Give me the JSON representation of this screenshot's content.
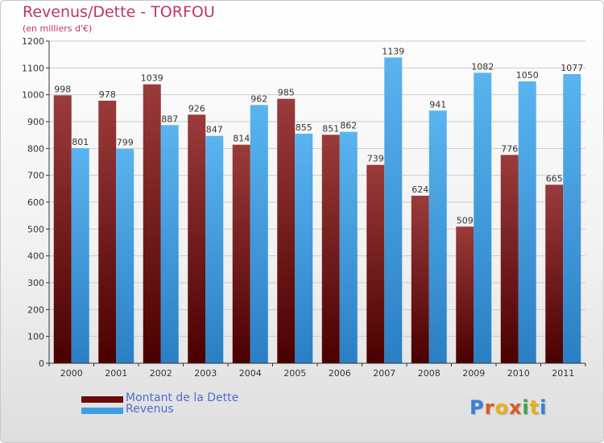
{
  "header": {
    "title": "Revenus/Dette - TORFOU",
    "subtitle": "(en milliers d'€)"
  },
  "legend": {
    "items": [
      {
        "label": "Montant de la Dette",
        "color": "#6b0a0a"
      },
      {
        "label": "Revenus",
        "color": "#3d9fe6"
      }
    ]
  },
  "logo": {
    "text": "Proxiti"
  },
  "colors": {
    "debt_top": "#9b3b3b",
    "debt_bottom": "#4a0000",
    "revenue_top": "#5ab4f0",
    "revenue_bottom": "#2a7fc4",
    "axis": "#333333",
    "grid": "#cccccc",
    "label": "#333333"
  },
  "chart_data": {
    "type": "bar",
    "categories": [
      "2000",
      "2001",
      "2002",
      "2003",
      "2004",
      "2005",
      "2006",
      "2007",
      "2008",
      "2009",
      "2010",
      "2011"
    ],
    "series": [
      {
        "name": "Montant de la Dette",
        "values": [
          998,
          978,
          1039,
          926,
          814,
          985,
          851,
          739,
          624,
          509,
          776,
          665
        ]
      },
      {
        "name": "Revenus",
        "values": [
          801,
          799,
          887,
          847,
          962,
          855,
          862,
          1139,
          941,
          1082,
          1050,
          1077
        ]
      }
    ],
    "title": "Revenus/Dette - TORFOU",
    "ylabel": "(en milliers d'€)",
    "ylim": [
      0,
      1200
    ],
    "yticks": [
      0,
      100,
      200,
      300,
      400,
      500,
      600,
      700,
      800,
      900,
      1000,
      1100,
      1200
    ],
    "grid": true,
    "legend_position": "bottom-left"
  }
}
